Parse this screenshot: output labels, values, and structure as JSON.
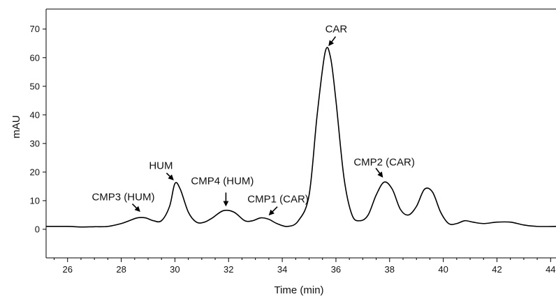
{
  "chart_data": {
    "type": "line",
    "title": "",
    "xlabel": "Time (min)",
    "ylabel": "mAU",
    "xlim": [
      25.2,
      44.2
    ],
    "ylim": [
      -10,
      77
    ],
    "x_ticks": [
      26,
      28,
      30,
      32,
      34,
      36,
      38,
      40,
      42,
      44
    ],
    "x_tick_labels": [
      "26",
      "28",
      "30",
      "32",
      "34",
      "36",
      "38",
      "40",
      "42",
      "44"
    ],
    "y_ticks": [
      0,
      10,
      20,
      30,
      40,
      50,
      60,
      70
    ],
    "y_tick_labels": [
      "0",
      "10",
      "20",
      "30",
      "40",
      "50",
      "60",
      "70"
    ],
    "grid": false,
    "legend": "none",
    "line_color": "#000000",
    "series": [
      {
        "x": [
          25.2,
          26,
          26.5,
          27,
          27.5,
          28,
          28.3,
          28.6,
          28.9,
          29.2,
          29.5,
          29.8,
          30,
          30.2,
          30.5,
          30.8,
          31.1,
          31.4,
          31.8,
          32.2,
          32.6,
          32.9,
          33.2,
          33.5,
          33.8,
          34.2,
          34.6,
          35,
          35.3,
          35.6,
          35.8,
          36,
          36.3,
          36.6,
          36.9,
          37.2,
          37.5,
          37.8,
          38.1,
          38.4,
          38.7,
          39,
          39.3,
          39.6,
          39.9,
          40.2,
          40.5,
          40.8,
          41.1,
          41.5,
          42,
          42.5,
          43,
          43.5,
          44.2
        ],
        "values": [
          1,
          1,
          0.8,
          0.9,
          1,
          2,
          3,
          4,
          4,
          3,
          3,
          8,
          16,
          14,
          6,
          2.5,
          2.5,
          4,
          6.5,
          6,
          3,
          3,
          4,
          3.5,
          2,
          1,
          3,
          12,
          40,
          62,
          60,
          45,
          18,
          5,
          3,
          5,
          12,
          16.5,
          14,
          7,
          5,
          8,
          14,
          13,
          6,
          2,
          2,
          3,
          2.5,
          2,
          2.5,
          2.5,
          1.5,
          1,
          1
        ]
      }
    ],
    "annotations": [
      {
        "text": "CMP3 (HUM)",
        "x": 28.7,
        "y": 4
      },
      {
        "text": "HUM",
        "x": 30.0,
        "y": 16
      },
      {
        "text": "CMP4 (HUM)",
        "x": 31.9,
        "y": 6.5
      },
      {
        "text": "CMP1 (CAR)",
        "x": 33.4,
        "y": 3
      },
      {
        "text": "CAR",
        "x": 35.7,
        "y": 62
      },
      {
        "text": "CMP2 (CAR)",
        "x": 37.8,
        "y": 16.5
      }
    ]
  }
}
